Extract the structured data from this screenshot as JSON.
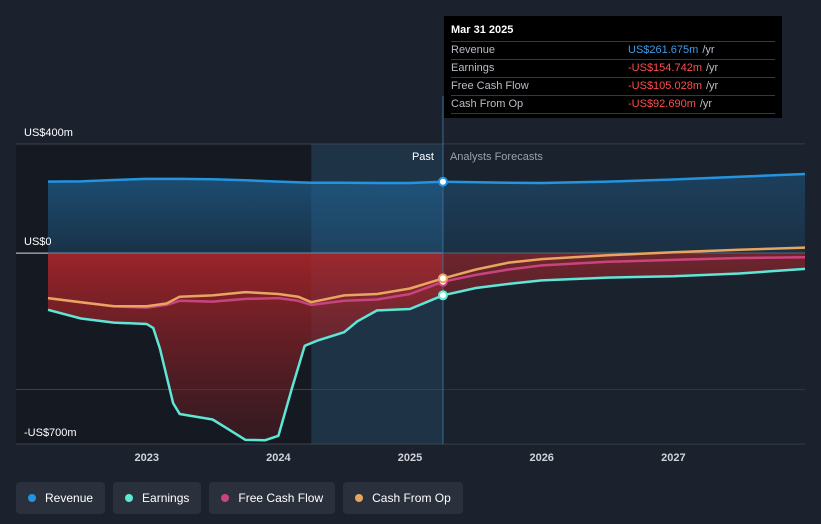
{
  "chart_data": {
    "type": "line",
    "x_unit": "year",
    "ylim": [
      -700,
      400
    ],
    "y_tick_labels": [
      {
        "value": 400,
        "label": "US$400m"
      },
      {
        "value": 0,
        "label": "US$0"
      },
      {
        "value": -700,
        "label": "-US$700m"
      }
    ],
    "x_ticks": [
      2023,
      2024,
      2025,
      2026,
      2027
    ],
    "x_range": [
      2022.25,
      2028.0
    ],
    "past_label": "Past",
    "forecast_label": "Analysts Forecasts",
    "divider_x": 2025.25,
    "shade_start_x": 2024.25,
    "grid_values": [
      400,
      0,
      -500
    ],
    "series": [
      {
        "name": "Revenue",
        "color": "#2394df",
        "fill": true,
        "points": [
          [
            2022.25,
            262
          ],
          [
            2022.5,
            263
          ],
          [
            2022.75,
            268
          ],
          [
            2023.0,
            272
          ],
          [
            2023.25,
            272
          ],
          [
            2023.5,
            271
          ],
          [
            2023.75,
            267
          ],
          [
            2024.0,
            262
          ],
          [
            2024.25,
            258
          ],
          [
            2024.5,
            258
          ],
          [
            2024.75,
            257
          ],
          [
            2025.0,
            257
          ],
          [
            2025.25,
            261.675
          ],
          [
            2025.5,
            260
          ],
          [
            2025.75,
            258
          ],
          [
            2026.0,
            257
          ],
          [
            2026.5,
            262
          ],
          [
            2027.0,
            270
          ],
          [
            2027.5,
            280
          ],
          [
            2028.0,
            290
          ]
        ]
      },
      {
        "name": "Earnings",
        "color": "#5ee6d6",
        "points": [
          [
            2022.25,
            -208
          ],
          [
            2022.5,
            -240
          ],
          [
            2022.75,
            -255
          ],
          [
            2023.0,
            -260
          ],
          [
            2023.05,
            -275
          ],
          [
            2023.1,
            -350
          ],
          [
            2023.2,
            -550
          ],
          [
            2023.25,
            -590
          ],
          [
            2023.5,
            -610
          ],
          [
            2023.6,
            -640
          ],
          [
            2023.75,
            -685
          ],
          [
            2023.9,
            -686
          ],
          [
            2024.0,
            -670
          ],
          [
            2024.1,
            -500
          ],
          [
            2024.2,
            -340
          ],
          [
            2024.3,
            -320
          ],
          [
            2024.5,
            -290
          ],
          [
            2024.6,
            -250
          ],
          [
            2024.75,
            -210
          ],
          [
            2025.0,
            -205
          ],
          [
            2025.25,
            -154.742
          ],
          [
            2025.5,
            -128
          ],
          [
            2025.75,
            -113
          ],
          [
            2026.0,
            -100
          ],
          [
            2026.5,
            -90
          ],
          [
            2027.0,
            -85
          ],
          [
            2027.5,
            -75
          ],
          [
            2028.0,
            -58
          ]
        ]
      },
      {
        "name": "Free Cash Flow",
        "color": "#c8447e",
        "points": [
          [
            2022.25,
            -165
          ],
          [
            2022.5,
            -180
          ],
          [
            2022.75,
            -195
          ],
          [
            2023.0,
            -200
          ],
          [
            2023.15,
            -190
          ],
          [
            2023.25,
            -175
          ],
          [
            2023.5,
            -178
          ],
          [
            2023.75,
            -168
          ],
          [
            2024.0,
            -165
          ],
          [
            2024.15,
            -175
          ],
          [
            2024.25,
            -190
          ],
          [
            2024.5,
            -175
          ],
          [
            2024.75,
            -170
          ],
          [
            2025.0,
            -150
          ],
          [
            2025.25,
            -105.028
          ],
          [
            2025.5,
            -80
          ],
          [
            2025.75,
            -60
          ],
          [
            2026.0,
            -45
          ],
          [
            2026.5,
            -32
          ],
          [
            2027.0,
            -25
          ],
          [
            2027.5,
            -18
          ],
          [
            2028.0,
            -15
          ]
        ]
      },
      {
        "name": "Cash From Op",
        "color": "#e8a560",
        "points": [
          [
            2022.25,
            -165
          ],
          [
            2022.5,
            -180
          ],
          [
            2022.75,
            -195
          ],
          [
            2023.0,
            -195
          ],
          [
            2023.15,
            -185
          ],
          [
            2023.25,
            -160
          ],
          [
            2023.5,
            -155
          ],
          [
            2023.75,
            -143
          ],
          [
            2024.0,
            -150
          ],
          [
            2024.15,
            -160
          ],
          [
            2024.25,
            -180
          ],
          [
            2024.5,
            -155
          ],
          [
            2024.75,
            -150
          ],
          [
            2025.0,
            -130
          ],
          [
            2025.25,
            -92.69
          ],
          [
            2025.5,
            -60
          ],
          [
            2025.75,
            -35
          ],
          [
            2026.0,
            -22
          ],
          [
            2026.5,
            -8
          ],
          [
            2027.0,
            3
          ],
          [
            2027.5,
            12
          ],
          [
            2028.0,
            20
          ]
        ]
      }
    ]
  },
  "tooltip": {
    "date": "Mar 31 2025",
    "rows": [
      {
        "label": "Revenue",
        "value": "US$261.675m",
        "unit": "/yr",
        "color": "#3f9ce8"
      },
      {
        "label": "Earnings",
        "value": "-US$154.742m",
        "unit": "/yr",
        "color": "#ff4d4d"
      },
      {
        "label": "Free Cash Flow",
        "value": "-US$105.028m",
        "unit": "/yr",
        "color": "#ff4d4d"
      },
      {
        "label": "Cash From Op",
        "value": "-US$92.690m",
        "unit": "/yr",
        "color": "#ff4d4d"
      }
    ]
  },
  "legend": [
    {
      "label": "Revenue",
      "color": "#2394df"
    },
    {
      "label": "Earnings",
      "color": "#5ee6d6"
    },
    {
      "label": "Free Cash Flow",
      "color": "#c8447e"
    },
    {
      "label": "Cash From Op",
      "color": "#e8a560"
    }
  ]
}
